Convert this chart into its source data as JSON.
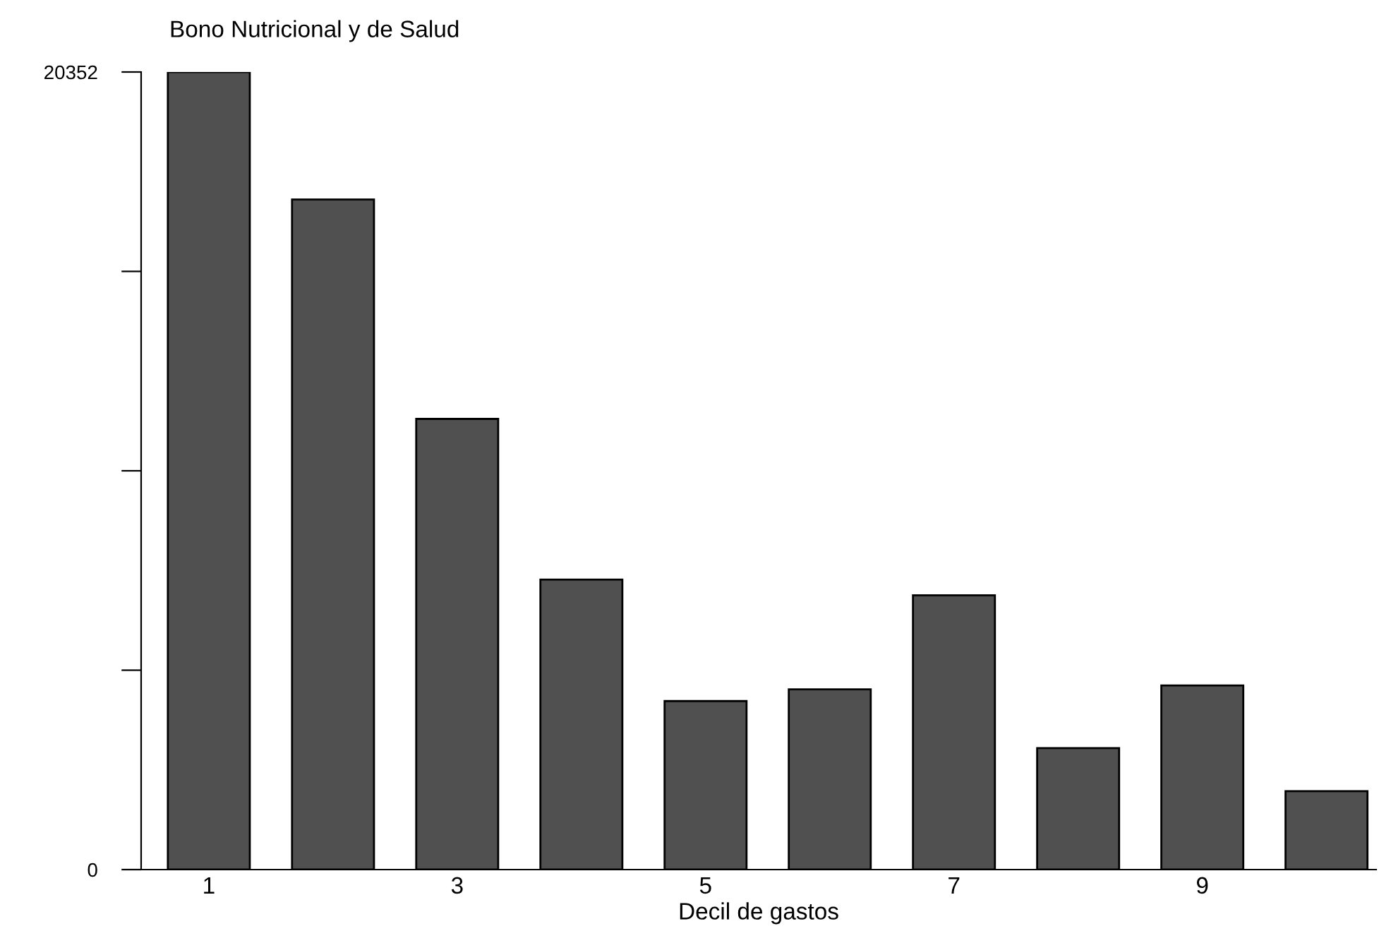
{
  "chart_data": {
    "type": "bar",
    "title": "Bono Nutricional y de Salud",
    "xlabel": "Decil de gastos",
    "categories": [
      "1",
      null,
      "3",
      null,
      "5",
      null,
      "7",
      null,
      "9",
      null
    ],
    "values": [
      20352,
      17100,
      11500,
      7400,
      4300,
      4600,
      7000,
      3100,
      4700,
      2000
    ],
    "color": "#505050",
    "ylim": [
      0,
      20352
    ],
    "yticks": [
      0,
      {
        "value": 5088,
        "label": null
      },
      {
        "value": 10176,
        "label": null
      },
      {
        "value": 15264,
        "label": null
      },
      20352
    ],
    "grid": false,
    "legend": false
  }
}
